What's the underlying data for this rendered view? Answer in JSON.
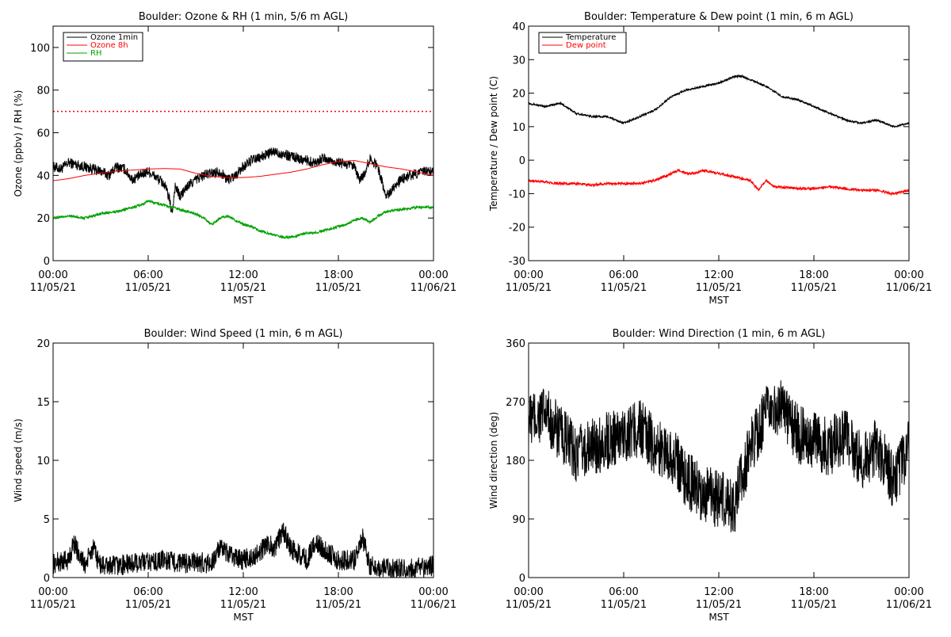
{
  "chart_data": [
    {
      "type": "line",
      "title": "Boulder: Ozone & RH (1 min, 5/6 m AGL)",
      "xlabel": "MST",
      "ylabel": "Ozone (ppbv) / RH (%)",
      "x_ticks": [
        {
          "time": "00:00",
          "date": "11/05/21"
        },
        {
          "time": "06:00",
          "date": "11/05/21"
        },
        {
          "time": "12:00",
          "date": "11/05/21"
        },
        {
          "time": "18:00",
          "date": "11/05/21"
        },
        {
          "time": "00:00",
          "date": "11/06/21"
        }
      ],
      "xlim": [
        0,
        24
      ],
      "ylim": [
        0,
        110
      ],
      "y_ticks": [
        0,
        20,
        40,
        60,
        80,
        100
      ],
      "legend_position": "top-left",
      "reference_line": {
        "y": 70,
        "color": "#ff0000",
        "style": "dotted"
      },
      "series": [
        {
          "name": "Ozone 1min",
          "color": "#000000",
          "noise": 2.5,
          "x": [
            0,
            0.5,
            1,
            1.5,
            2,
            2.5,
            3,
            3.5,
            4,
            4.5,
            5,
            5.5,
            6,
            6.5,
            7,
            7.3,
            7.5,
            7.7,
            8,
            8.5,
            9,
            9.5,
            10,
            10.5,
            11,
            11.5,
            12,
            12.5,
            13,
            13.5,
            14,
            14.5,
            15,
            15.5,
            16,
            16.5,
            17,
            17.5,
            18,
            18.5,
            19,
            19.3,
            19.6,
            20,
            20.5,
            21,
            21.5,
            22,
            22.5,
            23,
            23.5,
            24
          ],
          "y": [
            44,
            43,
            46,
            45,
            44,
            43,
            42,
            40,
            44,
            43,
            38,
            40,
            42,
            39,
            36,
            30,
            22,
            35,
            30,
            35,
            38,
            40,
            41,
            42,
            38,
            40,
            44,
            47,
            48,
            50,
            51,
            50,
            49,
            48,
            47,
            46,
            48,
            47,
            46,
            45,
            44,
            38,
            40,
            48,
            44,
            30,
            35,
            38,
            40,
            41,
            42,
            42
          ]
        },
        {
          "name": "Ozone 8h",
          "color": "#ff0000",
          "noise": 0,
          "x": [
            0,
            1,
            2,
            3,
            4,
            5,
            6,
            7,
            8,
            9,
            10,
            11,
            12,
            13,
            14,
            15,
            16,
            17,
            18,
            19,
            20,
            21,
            22,
            23,
            24
          ],
          "y": [
            37.5,
            38.5,
            40,
            41,
            42,
            42.5,
            43,
            43.2,
            43,
            41,
            39.5,
            39,
            39,
            39.5,
            40.5,
            41.5,
            43,
            45,
            46.5,
            47,
            45.5,
            44,
            43,
            41.5,
            40
          ]
        },
        {
          "name": "RH",
          "color": "#00a000",
          "noise": 0.6,
          "x": [
            0,
            1,
            2,
            3,
            4,
            5,
            5.5,
            6,
            6.5,
            7,
            7.5,
            8,
            8.5,
            9,
            9.5,
            10,
            10.5,
            11,
            11.5,
            12,
            12.5,
            13,
            13.5,
            14,
            14.5,
            15,
            15.5,
            16,
            16.5,
            17,
            17.5,
            18,
            18.5,
            19,
            19.5,
            20,
            20.5,
            21,
            22,
            23,
            24
          ],
          "y": [
            20,
            21,
            20,
            22,
            23,
            25,
            26,
            28,
            27,
            26,
            25,
            24,
            23,
            22,
            20,
            17,
            20,
            21,
            19,
            17,
            16,
            14,
            13,
            12,
            11,
            11,
            12,
            13,
            13,
            14,
            15,
            16,
            17,
            19,
            20,
            18,
            21,
            23,
            24,
            25,
            25
          ]
        }
      ]
    },
    {
      "type": "line",
      "title": "Boulder: Temperature & Dew point (1 min, 6 m AGL)",
      "xlabel": "MST",
      "ylabel": "Temperature / Dew point (C)",
      "x_ticks": [
        {
          "time": "00:00",
          "date": "11/05/21"
        },
        {
          "time": "06:00",
          "date": "11/05/21"
        },
        {
          "time": "12:00",
          "date": "11/05/21"
        },
        {
          "time": "18:00",
          "date": "11/05/21"
        },
        {
          "time": "00:00",
          "date": "11/06/21"
        }
      ],
      "xlim": [
        0,
        24
      ],
      "ylim": [
        -30,
        40
      ],
      "y_ticks": [
        -30,
        -20,
        -10,
        0,
        10,
        20,
        30,
        40
      ],
      "legend_position": "top-left",
      "series": [
        {
          "name": "Temperature",
          "color": "#000000",
          "noise": 0.3,
          "x": [
            0,
            1,
            2,
            3,
            4,
            5,
            6,
            7,
            8,
            9,
            10,
            11,
            12,
            13,
            13.5,
            14,
            15,
            16,
            17,
            18,
            19,
            20,
            21,
            22,
            23,
            24
          ],
          "y": [
            17,
            16,
            17,
            14,
            13,
            13,
            11,
            13,
            15,
            19,
            21,
            22,
            23,
            25,
            25,
            24,
            22,
            19,
            18,
            16,
            14,
            12,
            11,
            12,
            10,
            11
          ]
        },
        {
          "name": "Dew point",
          "color": "#ff0000",
          "noise": 0.4,
          "x": [
            0,
            1,
            2,
            3,
            4,
            5,
            6,
            7,
            8,
            9,
            9.5,
            10,
            10.5,
            11,
            12,
            13,
            14,
            14.5,
            15,
            15.5,
            16,
            17,
            18,
            19,
            20,
            21,
            22,
            23,
            24
          ],
          "y": [
            -6,
            -6.5,
            -7,
            -7,
            -7.5,
            -7,
            -7,
            -7,
            -6,
            -4,
            -3,
            -4,
            -4,
            -3,
            -4,
            -5,
            -6,
            -9,
            -6,
            -8,
            -8,
            -8.5,
            -8.5,
            -8,
            -8.5,
            -9,
            -9,
            -10,
            -9
          ]
        }
      ]
    },
    {
      "type": "line",
      "title": "Boulder: Wind Speed (1 min, 6 m AGL)",
      "xlabel": "MST",
      "ylabel": "Wind speed (m/s)",
      "x_ticks": [
        {
          "time": "00:00",
          "date": "11/05/21"
        },
        {
          "time": "06:00",
          "date": "11/05/21"
        },
        {
          "time": "12:00",
          "date": "11/05/21"
        },
        {
          "time": "18:00",
          "date": "11/05/21"
        },
        {
          "time": "00:00",
          "date": "11/06/21"
        }
      ],
      "xlim": [
        0,
        24
      ],
      "ylim": [
        0,
        20
      ],
      "y_ticks": [
        0,
        5,
        10,
        15,
        20
      ],
      "series": [
        {
          "name": "",
          "color": "#000000",
          "noise": 0.9,
          "x": [
            0,
            1,
            1.3,
            2,
            2.5,
            3,
            4,
            5,
            6,
            7,
            8,
            9,
            10,
            10.5,
            11,
            12,
            13,
            13.5,
            14,
            14.5,
            15,
            16,
            16.5,
            17,
            18,
            19,
            19.5,
            20,
            21,
            22,
            23,
            24
          ],
          "y": [
            1.2,
            1.5,
            3,
            1,
            2.5,
            1,
            1,
            1.2,
            1.3,
            1.5,
            1.2,
            1.3,
            1.2,
            2.5,
            2,
            1.5,
            2,
            3,
            2.5,
            4,
            2.5,
            1.5,
            3,
            2.5,
            1.5,
            1.5,
            3.5,
            1,
            0.8,
            0.7,
            0.8,
            1
          ]
        }
      ]
    },
    {
      "type": "line",
      "title": "Boulder: Wind Direction (1 min, 6 m AGL)",
      "xlabel": "MST",
      "ylabel": "Wind direction (deg)",
      "x_ticks": [
        {
          "time": "00:00",
          "date": "11/05/21"
        },
        {
          "time": "06:00",
          "date": "11/05/21"
        },
        {
          "time": "12:00",
          "date": "11/05/21"
        },
        {
          "time": "18:00",
          "date": "11/05/21"
        },
        {
          "time": "00:00",
          "date": "11/06/21"
        }
      ],
      "xlim": [
        0,
        24
      ],
      "ylim": [
        0,
        360
      ],
      "y_ticks": [
        0,
        90,
        180,
        270,
        360
      ],
      "series": [
        {
          "name": "",
          "color": "#000000",
          "noise": 45,
          "x": [
            0,
            1,
            2,
            3,
            4,
            5,
            6,
            7,
            8,
            9,
            10,
            11,
            12,
            13,
            14,
            15,
            16,
            17,
            18,
            19,
            20,
            21,
            22,
            23,
            24
          ],
          "y": [
            240,
            250,
            220,
            190,
            200,
            210,
            220,
            230,
            200,
            190,
            150,
            130,
            120,
            110,
            200,
            250,
            260,
            220,
            210,
            200,
            220,
            180,
            200,
            150,
            200
          ]
        }
      ]
    }
  ]
}
